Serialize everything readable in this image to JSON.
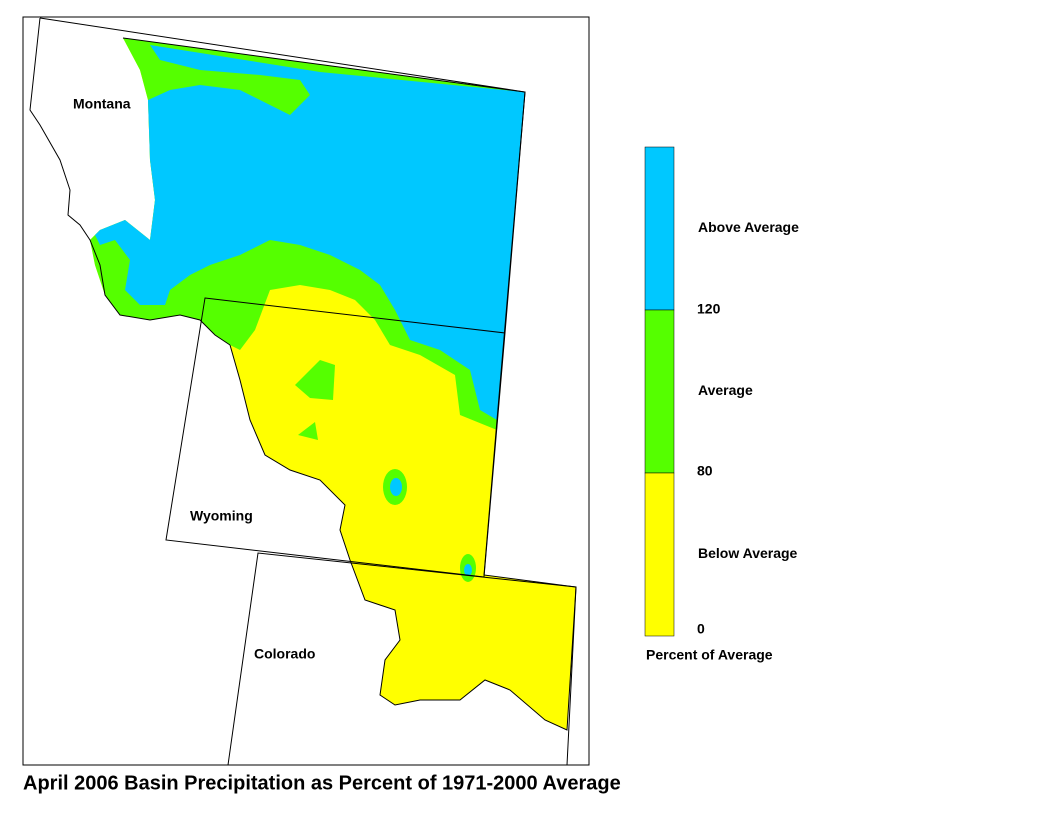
{
  "map": {
    "title": "April 2006 Basin Precipitation as Percent of 1971-2000 Average",
    "states": [
      "Montana",
      "Wyoming",
      "Colorado"
    ],
    "legend": {
      "classes": [
        {
          "label": "Above Average",
          "color": "#00c8ff"
        },
        {
          "label": "Average",
          "color": "#55ff00"
        },
        {
          "label": "Below Average",
          "color": "#ffff00"
        }
      ],
      "ticks": [
        120,
        80,
        0
      ],
      "caption": "Percent of Average"
    }
  }
}
